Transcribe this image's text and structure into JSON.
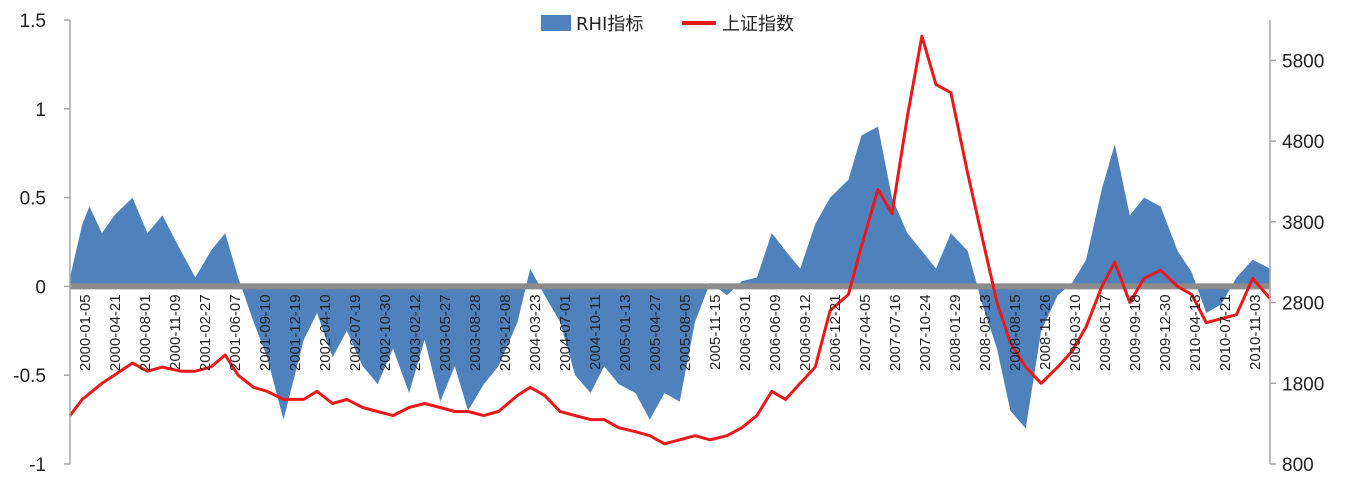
{
  "chart_data": {
    "type": "area",
    "title": "",
    "legend_position": "top-center",
    "grid": false,
    "colors": {
      "rhi_area": "#4F81BD",
      "index_line": "#E8191C",
      "zero_line": "#8C8C8C",
      "axis": "#A6A6A6"
    },
    "y_left": {
      "range": [
        -1,
        1.5
      ],
      "ticks": [
        1.5,
        1,
        0.5,
        0,
        -0.5,
        -1
      ],
      "tick_labels": [
        "1.5",
        "1",
        "0.5",
        "0",
        "-0.5",
        "-1"
      ]
    },
    "y_right": {
      "range": [
        800,
        6300
      ],
      "ticks": [
        5800,
        4800,
        3800,
        2800,
        1800,
        800
      ],
      "tick_labels": [
        "5800",
        "4800",
        "3800",
        "2800",
        "1800",
        "800"
      ]
    },
    "x_tick_labels": [
      "2000-01-05",
      "2000-04-21",
      "2000-08-01",
      "2000-11-09",
      "2001-02-27",
      "2001-06-07",
      "2001-09-10",
      "2001-12-19",
      "2002-04-10",
      "2002-07-19",
      "2002-10-30",
      "2003-02-12",
      "2003-05-27",
      "2003-08-28",
      "2003-12-08",
      "2004-03-23",
      "2004-07-01",
      "2004-10-11",
      "2005-01-13",
      "2005-04-27",
      "2005-08-05",
      "2005-11-15",
      "2006-03-01",
      "2006-06-09",
      "2006-09-12",
      "2006-12-21",
      "2007-04-05",
      "2007-07-16",
      "2007-10-24",
      "2008-01-29",
      "2008-05-13",
      "2008-08-15",
      "2008-11-26",
      "2009-03-10",
      "2009-06-17",
      "2009-09-18",
      "2009-12-30",
      "2010-04-13",
      "2010-07-21",
      "2010-11-03"
    ],
    "series": [
      {
        "name": "RHI指标",
        "axis": "left",
        "kind": "area",
        "x": [
          "2000-01-05",
          "2000-02-15",
          "2000-03-10",
          "2000-04-21",
          "2000-06-01",
          "2000-08-01",
          "2000-09-20",
          "2000-11-09",
          "2001-01-10",
          "2001-02-27",
          "2001-04-20",
          "2001-06-07",
          "2001-07-20",
          "2001-09-10",
          "2001-10-25",
          "2001-12-19",
          "2002-02-25",
          "2002-04-10",
          "2002-06-01",
          "2002-07-19",
          "2002-09-10",
          "2002-10-30",
          "2002-12-20",
          "2003-02-12",
          "2003-04-05",
          "2003-05-27",
          "2003-07-15",
          "2003-08-28",
          "2003-10-20",
          "2003-12-08",
          "2004-02-10",
          "2004-03-23",
          "2004-05-10",
          "2004-07-01",
          "2004-08-20",
          "2004-10-11",
          "2004-11-25",
          "2005-01-13",
          "2005-03-10",
          "2005-04-27",
          "2005-06-15",
          "2005-08-05",
          "2005-09-25",
          "2005-11-15",
          "2006-01-10",
          "2006-03-01",
          "2006-04-20",
          "2006-06-09",
          "2006-07-25",
          "2006-09-12",
          "2006-11-01",
          "2006-12-21",
          "2007-02-20",
          "2007-04-05",
          "2007-05-30",
          "2007-07-16",
          "2007-09-05",
          "2007-10-24",
          "2007-12-10",
          "2008-01-29",
          "2008-03-25",
          "2008-05-13",
          "2008-07-01",
          "2008-08-15",
          "2008-10-05",
          "2008-11-26",
          "2009-01-20",
          "2009-03-10",
          "2009-04-25",
          "2009-06-17",
          "2009-07-30",
          "2009-09-18",
          "2009-11-05",
          "2009-12-30",
          "2010-02-25",
          "2010-04-13",
          "2010-06-01",
          "2010-07-21",
          "2010-09-10",
          "2010-11-03",
          "2010-12-31"
        ],
        "values": [
          0.05,
          0.35,
          0.45,
          0.3,
          0.4,
          0.5,
          0.3,
          0.4,
          0.2,
          0.05,
          0.2,
          0.3,
          0.05,
          -0.2,
          -0.4,
          -0.75,
          -0.3,
          -0.15,
          -0.4,
          -0.25,
          -0.45,
          -0.55,
          -0.35,
          -0.6,
          -0.3,
          -0.65,
          -0.45,
          -0.7,
          -0.55,
          -0.45,
          -0.2,
          0.1,
          -0.05,
          -0.2,
          -0.5,
          -0.6,
          -0.45,
          -0.55,
          -0.6,
          -0.75,
          -0.6,
          -0.65,
          -0.2,
          0.02,
          -0.05,
          0.03,
          0.05,
          0.3,
          0.2,
          0.1,
          0.35,
          0.5,
          0.6,
          0.85,
          0.9,
          0.5,
          0.3,
          0.2,
          0.1,
          0.3,
          0.2,
          -0.1,
          -0.35,
          -0.7,
          -0.8,
          -0.25,
          -0.05,
          0.02,
          0.15,
          0.55,
          0.8,
          0.4,
          0.5,
          0.45,
          0.2,
          0.08,
          -0.15,
          -0.1,
          0.05,
          0.15,
          0.1
        ]
      },
      {
        "name": "上证指数",
        "axis": "right",
        "kind": "line",
        "x": [
          "2000-01-05",
          "2000-02-15",
          "2000-04-21",
          "2000-06-01",
          "2000-08-01",
          "2000-09-20",
          "2000-11-09",
          "2001-01-10",
          "2001-02-27",
          "2001-04-20",
          "2001-06-07",
          "2001-07-20",
          "2001-09-10",
          "2001-10-25",
          "2001-12-19",
          "2002-02-25",
          "2002-04-10",
          "2002-06-01",
          "2002-07-19",
          "2002-09-10",
          "2002-10-30",
          "2002-12-20",
          "2003-02-12",
          "2003-04-05",
          "2003-05-27",
          "2003-07-15",
          "2003-08-28",
          "2003-10-20",
          "2003-12-08",
          "2004-02-10",
          "2004-03-23",
          "2004-05-10",
          "2004-07-01",
          "2004-08-20",
          "2004-10-11",
          "2004-11-25",
          "2005-01-13",
          "2005-03-10",
          "2005-04-27",
          "2005-06-15",
          "2005-08-05",
          "2005-09-25",
          "2005-11-15",
          "2006-01-10",
          "2006-03-01",
          "2006-04-20",
          "2006-06-09",
          "2006-07-25",
          "2006-09-12",
          "2006-11-01",
          "2006-12-21",
          "2007-02-20",
          "2007-04-05",
          "2007-05-30",
          "2007-07-16",
          "2007-09-05",
          "2007-10-24",
          "2007-12-10",
          "2008-01-29",
          "2008-03-25",
          "2008-05-13",
          "2008-07-01",
          "2008-08-15",
          "2008-10-05",
          "2008-11-26",
          "2009-01-20",
          "2009-03-10",
          "2009-04-25",
          "2009-06-17",
          "2009-07-30",
          "2009-09-18",
          "2009-11-05",
          "2009-12-30",
          "2010-02-25",
          "2010-04-13",
          "2010-06-01",
          "2010-07-21",
          "2010-09-10",
          "2010-11-03",
          "2010-12-31"
        ],
        "values": [
          1400,
          1600,
          1800,
          1900,
          2050,
          1950,
          2000,
          1950,
          1950,
          2000,
          2150,
          1900,
          1750,
          1700,
          1600,
          1600,
          1700,
          1550,
          1600,
          1500,
          1450,
          1400,
          1500,
          1550,
          1500,
          1450,
          1450,
          1400,
          1450,
          1650,
          1750,
          1650,
          1450,
          1400,
          1350,
          1350,
          1250,
          1200,
          1150,
          1050,
          1100,
          1150,
          1100,
          1150,
          1250,
          1400,
          1700,
          1600,
          1800,
          2000,
          2700,
          2900,
          3500,
          4200,
          3900,
          5100,
          6100,
          5500,
          5400,
          4400,
          3600,
          2800,
          2300,
          2000,
          1800,
          2000,
          2200,
          2500,
          3000,
          3300,
          2800,
          3100,
          3200,
          3000,
          2900,
          2550,
          2600,
          2650,
          3100,
          2850
        ]
      }
    ]
  }
}
